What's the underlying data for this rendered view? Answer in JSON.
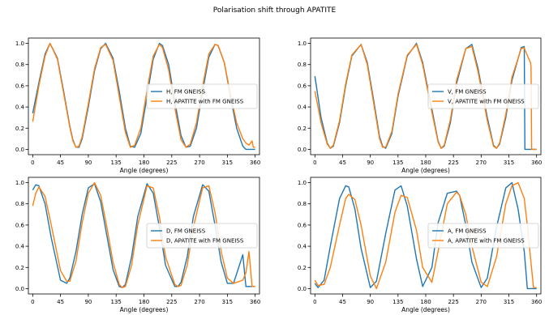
{
  "figure": {
    "title": "Polarisation shift through APATITE"
  },
  "colors": {
    "series1": "#1f77b4",
    "series2": "#ff7f0e",
    "axes": "#000000",
    "background": "#ffffff"
  },
  "chart_data": [
    {
      "type": "line",
      "panel": "top-left",
      "xlabel": "Angle (degrees)",
      "ylabel": "",
      "xlim": [
        -7,
        367
      ],
      "ylim": [
        -0.05,
        1.05
      ],
      "xticks": [
        0,
        45,
        90,
        135,
        180,
        225,
        270,
        315,
        360
      ],
      "yticks": [
        0.0,
        0.2,
        0.4,
        0.6,
        0.8,
        1.0
      ],
      "legend": "center-right",
      "grid": false,
      "x": [
        0,
        10,
        20,
        28,
        40,
        50,
        60,
        65,
        70,
        75,
        80,
        90,
        100,
        110,
        118,
        130,
        140,
        150,
        158,
        165,
        175,
        185,
        195,
        205,
        210,
        220,
        230,
        240,
        248,
        255,
        265,
        275,
        285,
        295,
        300,
        310,
        320,
        330,
        340,
        345,
        350,
        355,
        357,
        360
      ],
      "series": [
        {
          "name": "H, FM GNEISS",
          "values": [
            0.34,
            0.63,
            0.9,
            1.0,
            0.86,
            0.55,
            0.22,
            0.09,
            0.02,
            0.02,
            0.1,
            0.4,
            0.74,
            0.95,
            1.0,
            0.86,
            0.55,
            0.2,
            0.03,
            0.02,
            0.15,
            0.5,
            0.85,
            1.0,
            0.98,
            0.8,
            0.45,
            0.13,
            0.02,
            0.03,
            0.2,
            0.55,
            0.87,
            0.99,
            0.98,
            0.82,
            0.5,
            0.2,
            0.03,
            0.0,
            0.0,
            0.0,
            0.0,
            0.0
          ]
        },
        {
          "name": "H, APATITE with FM GNEISS",
          "values": [
            0.26,
            0.6,
            0.88,
            1.0,
            0.85,
            0.53,
            0.21,
            0.08,
            0.02,
            0.03,
            0.12,
            0.43,
            0.76,
            0.96,
            0.99,
            0.84,
            0.5,
            0.16,
            0.02,
            0.04,
            0.2,
            0.56,
            0.88,
            0.99,
            0.96,
            0.75,
            0.39,
            0.09,
            0.02,
            0.05,
            0.25,
            0.6,
            0.9,
            0.99,
            0.98,
            0.82,
            0.52,
            0.25,
            0.1,
            0.06,
            0.04,
            0.08,
            0.02,
            0.02
          ]
        }
      ]
    },
    {
      "type": "line",
      "panel": "top-right",
      "xlabel": "Angle (degrees)",
      "ylabel": "",
      "xlim": [
        -7,
        367
      ],
      "ylim": [
        -0.05,
        1.05
      ],
      "xticks": [
        0,
        45,
        90,
        135,
        180,
        225,
        270,
        315,
        360
      ],
      "yticks": [
        0.0,
        0.2,
        0.4,
        0.6,
        0.8,
        1.0
      ],
      "legend": "center-right",
      "grid": false,
      "x": [
        0,
        10,
        20,
        25,
        30,
        40,
        50,
        60,
        75,
        85,
        95,
        105,
        110,
        115,
        125,
        135,
        150,
        165,
        175,
        190,
        200,
        205,
        210,
        220,
        230,
        245,
        255,
        265,
        280,
        290,
        295,
        300,
        310,
        320,
        335,
        340,
        341,
        350,
        351,
        352,
        360
      ],
      "series": [
        {
          "name": "V, FM GNEISS",
          "values": [
            0.69,
            0.3,
            0.06,
            0.01,
            0.03,
            0.25,
            0.6,
            0.88,
            0.99,
            0.82,
            0.48,
            0.12,
            0.03,
            0.01,
            0.15,
            0.5,
            0.88,
            1.0,
            0.82,
            0.38,
            0.08,
            0.01,
            0.03,
            0.25,
            0.62,
            0.95,
            0.99,
            0.76,
            0.3,
            0.04,
            0.01,
            0.05,
            0.3,
            0.65,
            0.96,
            0.97,
            0.0,
            0.0,
            0.0,
            0.0,
            0.0
          ]
        },
        {
          "name": "V, APATITE with FM GNEISS",
          "values": [
            0.55,
            0.25,
            0.05,
            0.01,
            0.04,
            0.27,
            0.62,
            0.89,
            0.99,
            0.8,
            0.45,
            0.1,
            0.02,
            0.02,
            0.17,
            0.52,
            0.89,
            0.99,
            0.8,
            0.35,
            0.07,
            0.01,
            0.04,
            0.28,
            0.65,
            0.95,
            0.97,
            0.73,
            0.27,
            0.03,
            0.01,
            0.06,
            0.33,
            0.68,
            0.95,
            0.96,
            0.94,
            0.82,
            0.78,
            0.0,
            0.0
          ]
        }
      ]
    },
    {
      "type": "line",
      "panel": "bottom-left",
      "xlabel": "Angle (degrees)",
      "ylabel": "",
      "xlim": [
        -7,
        367
      ],
      "ylim": [
        -0.05,
        1.05
      ],
      "xticks": [
        0,
        45,
        90,
        135,
        180,
        225,
        270,
        315,
        360
      ],
      "yticks": [
        0.0,
        0.2,
        0.4,
        0.6,
        0.8,
        1.0
      ],
      "legend": "center-right",
      "grid": false,
      "x": [
        0,
        5,
        10,
        20,
        30,
        45,
        55,
        60,
        70,
        80,
        90,
        100,
        110,
        120,
        130,
        140,
        145,
        150,
        160,
        170,
        185,
        195,
        205,
        215,
        230,
        235,
        240,
        250,
        260,
        275,
        285,
        295,
        305,
        315,
        325,
        340,
        345,
        350,
        355,
        360
      ],
      "series": [
        {
          "name": "D, FM GNEISS",
          "values": [
            0.93,
            0.98,
            0.97,
            0.8,
            0.48,
            0.08,
            0.05,
            0.1,
            0.35,
            0.7,
            0.95,
            0.99,
            0.82,
            0.5,
            0.18,
            0.02,
            0.01,
            0.04,
            0.3,
            0.68,
            0.99,
            0.9,
            0.58,
            0.22,
            0.02,
            0.02,
            0.06,
            0.3,
            0.68,
            0.98,
            0.92,
            0.6,
            0.25,
            0.05,
            0.05,
            0.32,
            0.02,
            0.02,
            0.02,
            0.02
          ]
        },
        {
          "name": "D, APATITE with FM GNEISS",
          "values": [
            0.78,
            0.9,
            0.96,
            0.87,
            0.6,
            0.17,
            0.07,
            0.07,
            0.26,
            0.62,
            0.9,
            1.0,
            0.88,
            0.58,
            0.25,
            0.04,
            0.01,
            0.02,
            0.22,
            0.6,
            0.97,
            0.95,
            0.68,
            0.3,
            0.04,
            0.02,
            0.03,
            0.22,
            0.58,
            0.95,
            0.97,
            0.72,
            0.35,
            0.1,
            0.05,
            0.08,
            0.15,
            0.35,
            0.02,
            0.02
          ]
        }
      ]
    },
    {
      "type": "line",
      "panel": "bottom-right",
      "xlabel": "Angle (degrees)",
      "ylabel": "",
      "xlim": [
        -7,
        367
      ],
      "ylim": [
        -0.05,
        1.05
      ],
      "xticks": [
        0,
        45,
        90,
        135,
        180,
        225,
        270,
        315,
        360
      ],
      "yticks": [
        0.0,
        0.2,
        0.4,
        0.6,
        0.8,
        1.0
      ],
      "legend": "center-right",
      "grid": false,
      "x": [
        0,
        5,
        15,
        25,
        40,
        50,
        55,
        65,
        75,
        90,
        100,
        115,
        130,
        140,
        150,
        165,
        175,
        190,
        200,
        215,
        230,
        235,
        245,
        255,
        270,
        280,
        295,
        310,
        320,
        330,
        340,
        345,
        350,
        355,
        360
      ],
      "series": [
        {
          "name": "A, FM GNEISS",
          "values": [
            0.05,
            0.01,
            0.08,
            0.4,
            0.85,
            0.97,
            0.96,
            0.75,
            0.38,
            0.01,
            0.07,
            0.52,
            0.93,
            0.97,
            0.78,
            0.28,
            0.02,
            0.2,
            0.62,
            0.9,
            0.92,
            0.88,
            0.6,
            0.25,
            0.01,
            0.1,
            0.58,
            0.95,
            1.0,
            0.75,
            0.35,
            0.0,
            0.0,
            0.0,
            0.0
          ]
        },
        {
          "name": "A, APATITE with FM GNEISS",
          "values": [
            0.08,
            0.03,
            0.04,
            0.2,
            0.6,
            0.85,
            0.89,
            0.84,
            0.6,
            0.12,
            0.0,
            0.25,
            0.72,
            0.88,
            0.86,
            0.55,
            0.2,
            0.06,
            0.35,
            0.8,
            0.91,
            0.88,
            0.7,
            0.4,
            0.06,
            0.02,
            0.3,
            0.8,
            0.97,
            1.0,
            0.85,
            0.6,
            0.3,
            0.01,
            0.01
          ]
        }
      ]
    }
  ]
}
